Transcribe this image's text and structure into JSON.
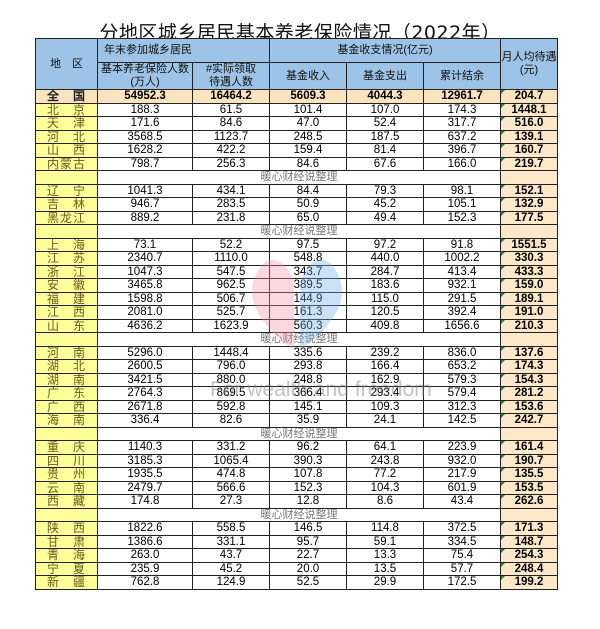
{
  "title": "分地区城乡居民基本养老保险情况（2022年）",
  "headers": {
    "region": "地　区",
    "insured_top": "年末参加城乡居民",
    "insured": "基本养老保险人数",
    "insured_unit": "(万人)",
    "recipients": "#实际领取待遇人数",
    "fund_group": "基金收支情况(亿元)",
    "income": "基金收入",
    "expense": "基金支出",
    "balance": "累计结余",
    "avg": "月人均待遇",
    "avg_unit": "(元)"
  },
  "separator_text": "暖心财经说整理",
  "watermark": "For wealth and freedom",
  "colors": {
    "header": "#9dc3e6",
    "region": "#ffff99",
    "avg": "#fde9c9",
    "total": "#fbe3bd"
  },
  "total": {
    "region": "全　国",
    "insured": "54952.3",
    "recipients": "16464.2",
    "income": "5609.3",
    "expense": "4044.3",
    "balance": "12961.7",
    "avg": "204.7"
  },
  "groups": [
    {
      "rows": [
        {
          "region": "北　京",
          "insured": "188.3",
          "recipients": "61.5",
          "income": "101.4",
          "expense": "107.0",
          "balance": "174.3",
          "avg": "1448.1"
        },
        {
          "region": "天　津",
          "insured": "171.6",
          "recipients": "84.6",
          "income": "47.0",
          "expense": "52.4",
          "balance": "317.7",
          "avg": "516.0"
        },
        {
          "region": "河　北",
          "insured": "3568.5",
          "recipients": "1123.7",
          "income": "248.5",
          "expense": "187.5",
          "balance": "637.2",
          "avg": "139.1"
        },
        {
          "region": "山　西",
          "insured": "1628.2",
          "recipients": "422.2",
          "income": "159.4",
          "expense": "81.4",
          "balance": "396.7",
          "avg": "160.7"
        },
        {
          "region": "内蒙古",
          "insured": "798.7",
          "recipients": "256.3",
          "income": "84.6",
          "expense": "67.6",
          "balance": "166.0",
          "avg": "219.7"
        }
      ]
    },
    {
      "rows": [
        {
          "region": "辽　宁",
          "insured": "1041.3",
          "recipients": "434.1",
          "income": "84.4",
          "expense": "79.3",
          "balance": "98.1",
          "avg": "152.1"
        },
        {
          "region": "吉　林",
          "insured": "946.7",
          "recipients": "283.5",
          "income": "50.9",
          "expense": "45.2",
          "balance": "105.1",
          "avg": "132.9"
        },
        {
          "region": "黑龙江",
          "insured": "889.2",
          "recipients": "231.8",
          "income": "65.0",
          "expense": "49.4",
          "balance": "152.3",
          "avg": "177.5"
        }
      ]
    },
    {
      "rows": [
        {
          "region": "上　海",
          "insured": "73.1",
          "recipients": "52.2",
          "income": "97.5",
          "expense": "97.2",
          "balance": "91.8",
          "avg": "1551.5"
        },
        {
          "region": "江　苏",
          "insured": "2340.7",
          "recipients": "1110.0",
          "income": "548.8",
          "expense": "440.0",
          "balance": "1002.2",
          "avg": "330.3"
        },
        {
          "region": "浙　江",
          "insured": "1047.3",
          "recipients": "547.5",
          "income": "343.7",
          "expense": "284.7",
          "balance": "413.4",
          "avg": "433.3"
        },
        {
          "region": "安　徽",
          "insured": "3465.8",
          "recipients": "962.5",
          "income": "389.5",
          "expense": "183.6",
          "balance": "932.1",
          "avg": "159.0"
        },
        {
          "region": "福　建",
          "insured": "1598.8",
          "recipients": "506.7",
          "income": "144.9",
          "expense": "115.0",
          "balance": "291.5",
          "avg": "189.1"
        },
        {
          "region": "江　西",
          "insured": "2081.0",
          "recipients": "525.7",
          "income": "161.3",
          "expense": "120.5",
          "balance": "392.4",
          "avg": "191.0"
        },
        {
          "region": "山　东",
          "insured": "4636.2",
          "recipients": "1623.9",
          "income": "560.3",
          "expense": "409.8",
          "balance": "1656.6",
          "avg": "210.3"
        }
      ]
    },
    {
      "rows": [
        {
          "region": "河　南",
          "insured": "5296.0",
          "recipients": "1448.4",
          "income": "335.6",
          "expense": "239.2",
          "balance": "836.0",
          "avg": "137.6"
        },
        {
          "region": "湖　北",
          "insured": "2600.5",
          "recipients": "796.0",
          "income": "293.8",
          "expense": "166.4",
          "balance": "653.2",
          "avg": "174.3"
        },
        {
          "region": "湖　南",
          "insured": "3421.5",
          "recipients": "880.0",
          "income": "248.8",
          "expense": "162.9",
          "balance": "579.3",
          "avg": "154.3"
        },
        {
          "region": "广　东",
          "insured": "2764.3",
          "recipients": "869.5",
          "income": "366.4",
          "expense": "293.4",
          "balance": "579.4",
          "avg": "281.2"
        },
        {
          "region": "广　西",
          "insured": "2671.8",
          "recipients": "592.8",
          "income": "145.1",
          "expense": "109.3",
          "balance": "312.3",
          "avg": "153.6"
        },
        {
          "region": "海　南",
          "insured": "336.4",
          "recipients": "82.6",
          "income": "35.9",
          "expense": "24.1",
          "balance": "142.5",
          "avg": "242.7"
        }
      ]
    },
    {
      "rows": [
        {
          "region": "重　庆",
          "insured": "1140.3",
          "recipients": "331.2",
          "income": "96.2",
          "expense": "64.1",
          "balance": "223.9",
          "avg": "161.4"
        },
        {
          "region": "四　川",
          "insured": "3185.3",
          "recipients": "1065.4",
          "income": "390.3",
          "expense": "243.8",
          "balance": "932.0",
          "avg": "190.7"
        },
        {
          "region": "贵　州",
          "insured": "1935.5",
          "recipients": "474.8",
          "income": "107.8",
          "expense": "77.2",
          "balance": "217.9",
          "avg": "135.5"
        },
        {
          "region": "云　南",
          "insured": "2479.7",
          "recipients": "566.6",
          "income": "152.3",
          "expense": "104.3",
          "balance": "601.9",
          "avg": "153.5"
        },
        {
          "region": "西　藏",
          "insured": "174.8",
          "recipients": "27.3",
          "income": "12.8",
          "expense": "8.6",
          "balance": "43.4",
          "avg": "262.6"
        }
      ]
    },
    {
      "rows": [
        {
          "region": "陕　西",
          "insured": "1822.6",
          "recipients": "558.5",
          "income": "146.5",
          "expense": "114.8",
          "balance": "372.5",
          "avg": "171.3"
        },
        {
          "region": "甘　肃",
          "insured": "1386.6",
          "recipients": "331.1",
          "income": "95.7",
          "expense": "59.1",
          "balance": "334.5",
          "avg": "148.7"
        },
        {
          "region": "青　海",
          "insured": "263.0",
          "recipients": "43.7",
          "income": "22.7",
          "expense": "13.3",
          "balance": "75.4",
          "avg": "254.3"
        },
        {
          "region": "宁　夏",
          "insured": "235.9",
          "recipients": "45.2",
          "income": "20.0",
          "expense": "13.5",
          "balance": "57.7",
          "avg": "248.4"
        },
        {
          "region": "新　疆",
          "insured": "762.8",
          "recipients": "124.9",
          "income": "52.5",
          "expense": "29.9",
          "balance": "172.5",
          "avg": "199.2"
        }
      ]
    }
  ]
}
